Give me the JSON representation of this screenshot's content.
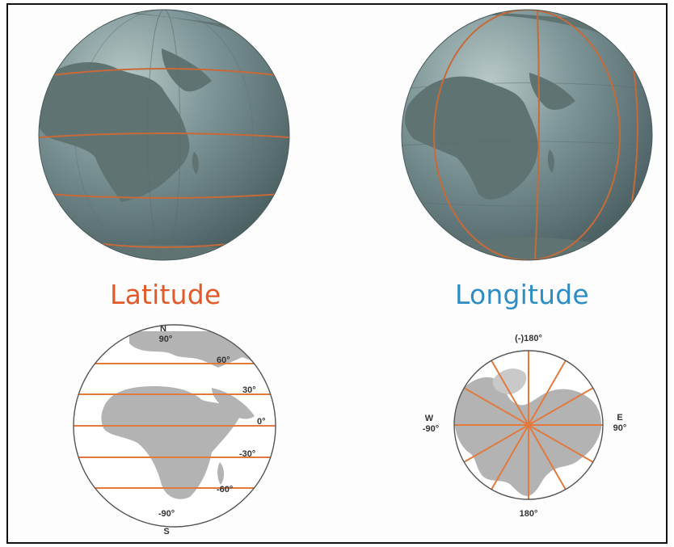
{
  "titles": {
    "latitude": "Latitude",
    "longitude": "Longitude"
  },
  "latitude_diagram": {
    "north_letter": "N",
    "north_degree": "90°",
    "lines": [
      "60°",
      "30°",
      "0°",
      "-30°",
      "-60°"
    ],
    "south_degree": "-90°",
    "south_letter": "S"
  },
  "longitude_diagram": {
    "top": "(-)180°",
    "west_letter": "W",
    "west_degree": "-90°",
    "east_letter": "E",
    "east_degree": "90°",
    "bottom": "180°"
  },
  "colors": {
    "latitude_title": "#e2592a",
    "longitude_title": "#2e8ec4",
    "grid_line": "#e07a3f",
    "land": "#b3b3b3",
    "globe_ocean": "#7f9799"
  }
}
